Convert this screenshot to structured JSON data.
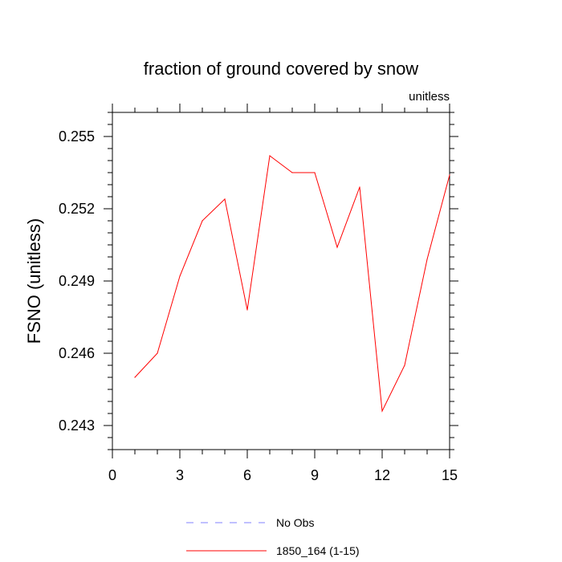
{
  "chart_data": {
    "type": "line",
    "title": "fraction of ground covered by snow",
    "units_label": "unitless",
    "ylabel": "FSNO  (unitless)",
    "xlabel": "",
    "xlim": [
      0,
      15
    ],
    "ylim": [
      0.242,
      0.256
    ],
    "x_ticks": [
      0,
      3,
      6,
      9,
      12,
      15
    ],
    "y_ticks": [
      0.243,
      0.246,
      0.249,
      0.252,
      0.255
    ],
    "y_tick_labels": [
      "0.243",
      "0.246",
      "0.249",
      "0.252",
      "0.255"
    ],
    "grid": false,
    "legend_position": "bottom-center",
    "legend": [
      {
        "name": "No Obs",
        "color": "#8080ff",
        "dash": "dashed"
      },
      {
        "name": "1850_164 (1-15)",
        "color": "#ff0000",
        "dash": "solid"
      }
    ],
    "series": [
      {
        "name": "1850_164 (1-15)",
        "color": "#ff0000",
        "x": [
          1,
          2,
          3,
          4,
          5,
          6,
          7,
          8,
          9,
          10,
          11,
          12,
          13,
          14,
          15
        ],
        "y": [
          0.245,
          0.246,
          0.2492,
          0.2515,
          0.2524,
          0.2478,
          0.2542,
          0.2535,
          0.2535,
          0.2504,
          0.2529,
          0.2436,
          0.2455,
          0.2499,
          0.2534
        ]
      }
    ]
  }
}
